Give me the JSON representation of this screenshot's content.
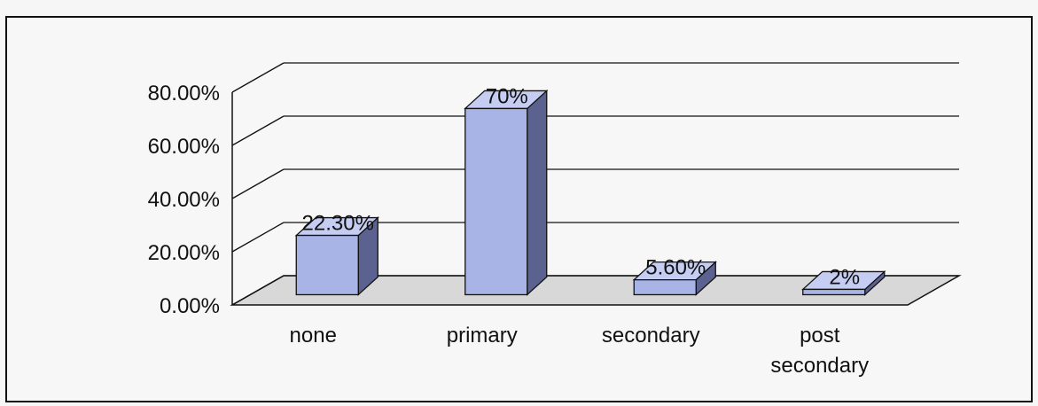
{
  "chart_data": {
    "type": "bar",
    "categories": [
      "none",
      "primary",
      "secondary",
      "post secondary"
    ],
    "category_lines": [
      [
        "none"
      ],
      [
        "primary"
      ],
      [
        "secondary"
      ],
      [
        "post",
        "secondary"
      ]
    ],
    "values": [
      22.3,
      70,
      5.6,
      2
    ],
    "data_labels": [
      "22.30%",
      "70%",
      "5.60%",
      "2%"
    ],
    "yticks": [
      "0.00%",
      "20.00%",
      "40.00%",
      "60.00%",
      "80.00%"
    ],
    "ylim": [
      0,
      80
    ],
    "title": "",
    "xlabel": "",
    "ylabel": "",
    "style": "3d-column",
    "grid": true,
    "legend": "none",
    "colors": {
      "front": "#a9b4e6",
      "top": "#c6cdf2",
      "side": "#5c6290",
      "edge": "#111111",
      "grid": "#111111",
      "floor": "#d8d8d8"
    }
  }
}
